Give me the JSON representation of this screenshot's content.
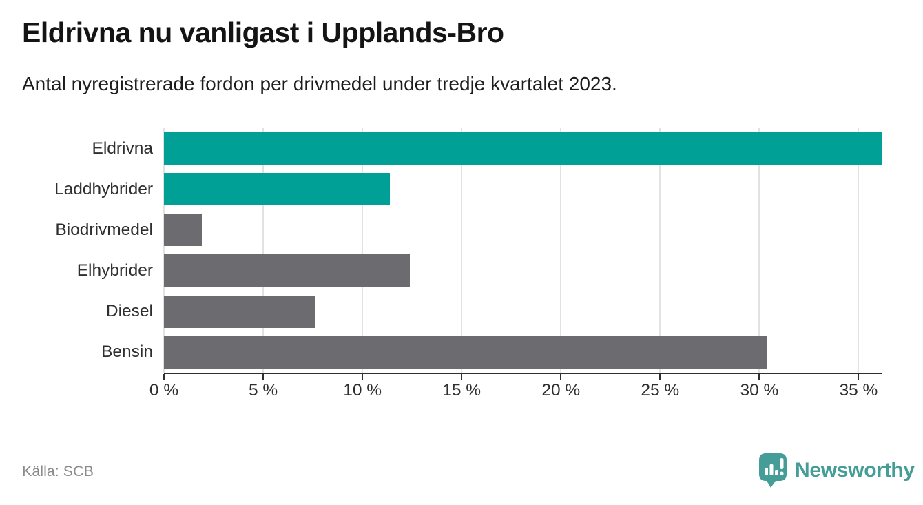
{
  "header": {
    "title": "Eldrivna nu vanligast i Upplands-Bro",
    "subtitle": "Antal nyregistrerade fordon per drivmedel under tredje kvartalet 2023."
  },
  "chart_data": {
    "type": "bar",
    "orientation": "horizontal",
    "categories": [
      "Eldrivna",
      "Laddhybrider",
      "Biodrivmedel",
      "Elhybrider",
      "Diesel",
      "Bensin"
    ],
    "values": [
      36.2,
      11.4,
      1.9,
      12.4,
      7.6,
      30.4
    ],
    "unit": "%",
    "bar_colors": [
      "#00A096",
      "#00A096",
      "#6C6B70",
      "#6C6B70",
      "#6C6B70",
      "#6C6B70"
    ],
    "highlight_color": "#00A096",
    "default_color": "#6C6B70",
    "xlim": [
      0,
      36.2
    ],
    "x_ticks": [
      0,
      5,
      10,
      15,
      20,
      25,
      30,
      35
    ],
    "x_tick_labels": [
      "0 %",
      "5 %",
      "10 %",
      "15 %",
      "20 %",
      "25 %",
      "30 %",
      "35 %"
    ],
    "grid": "vertical",
    "legend": "none",
    "gridline_color": "#E2E2E2",
    "axis_color": "#2F2F2F"
  },
  "footer": {
    "source": "Källa: SCB",
    "brand": "Newsworthy",
    "brand_color": "#459D98"
  }
}
